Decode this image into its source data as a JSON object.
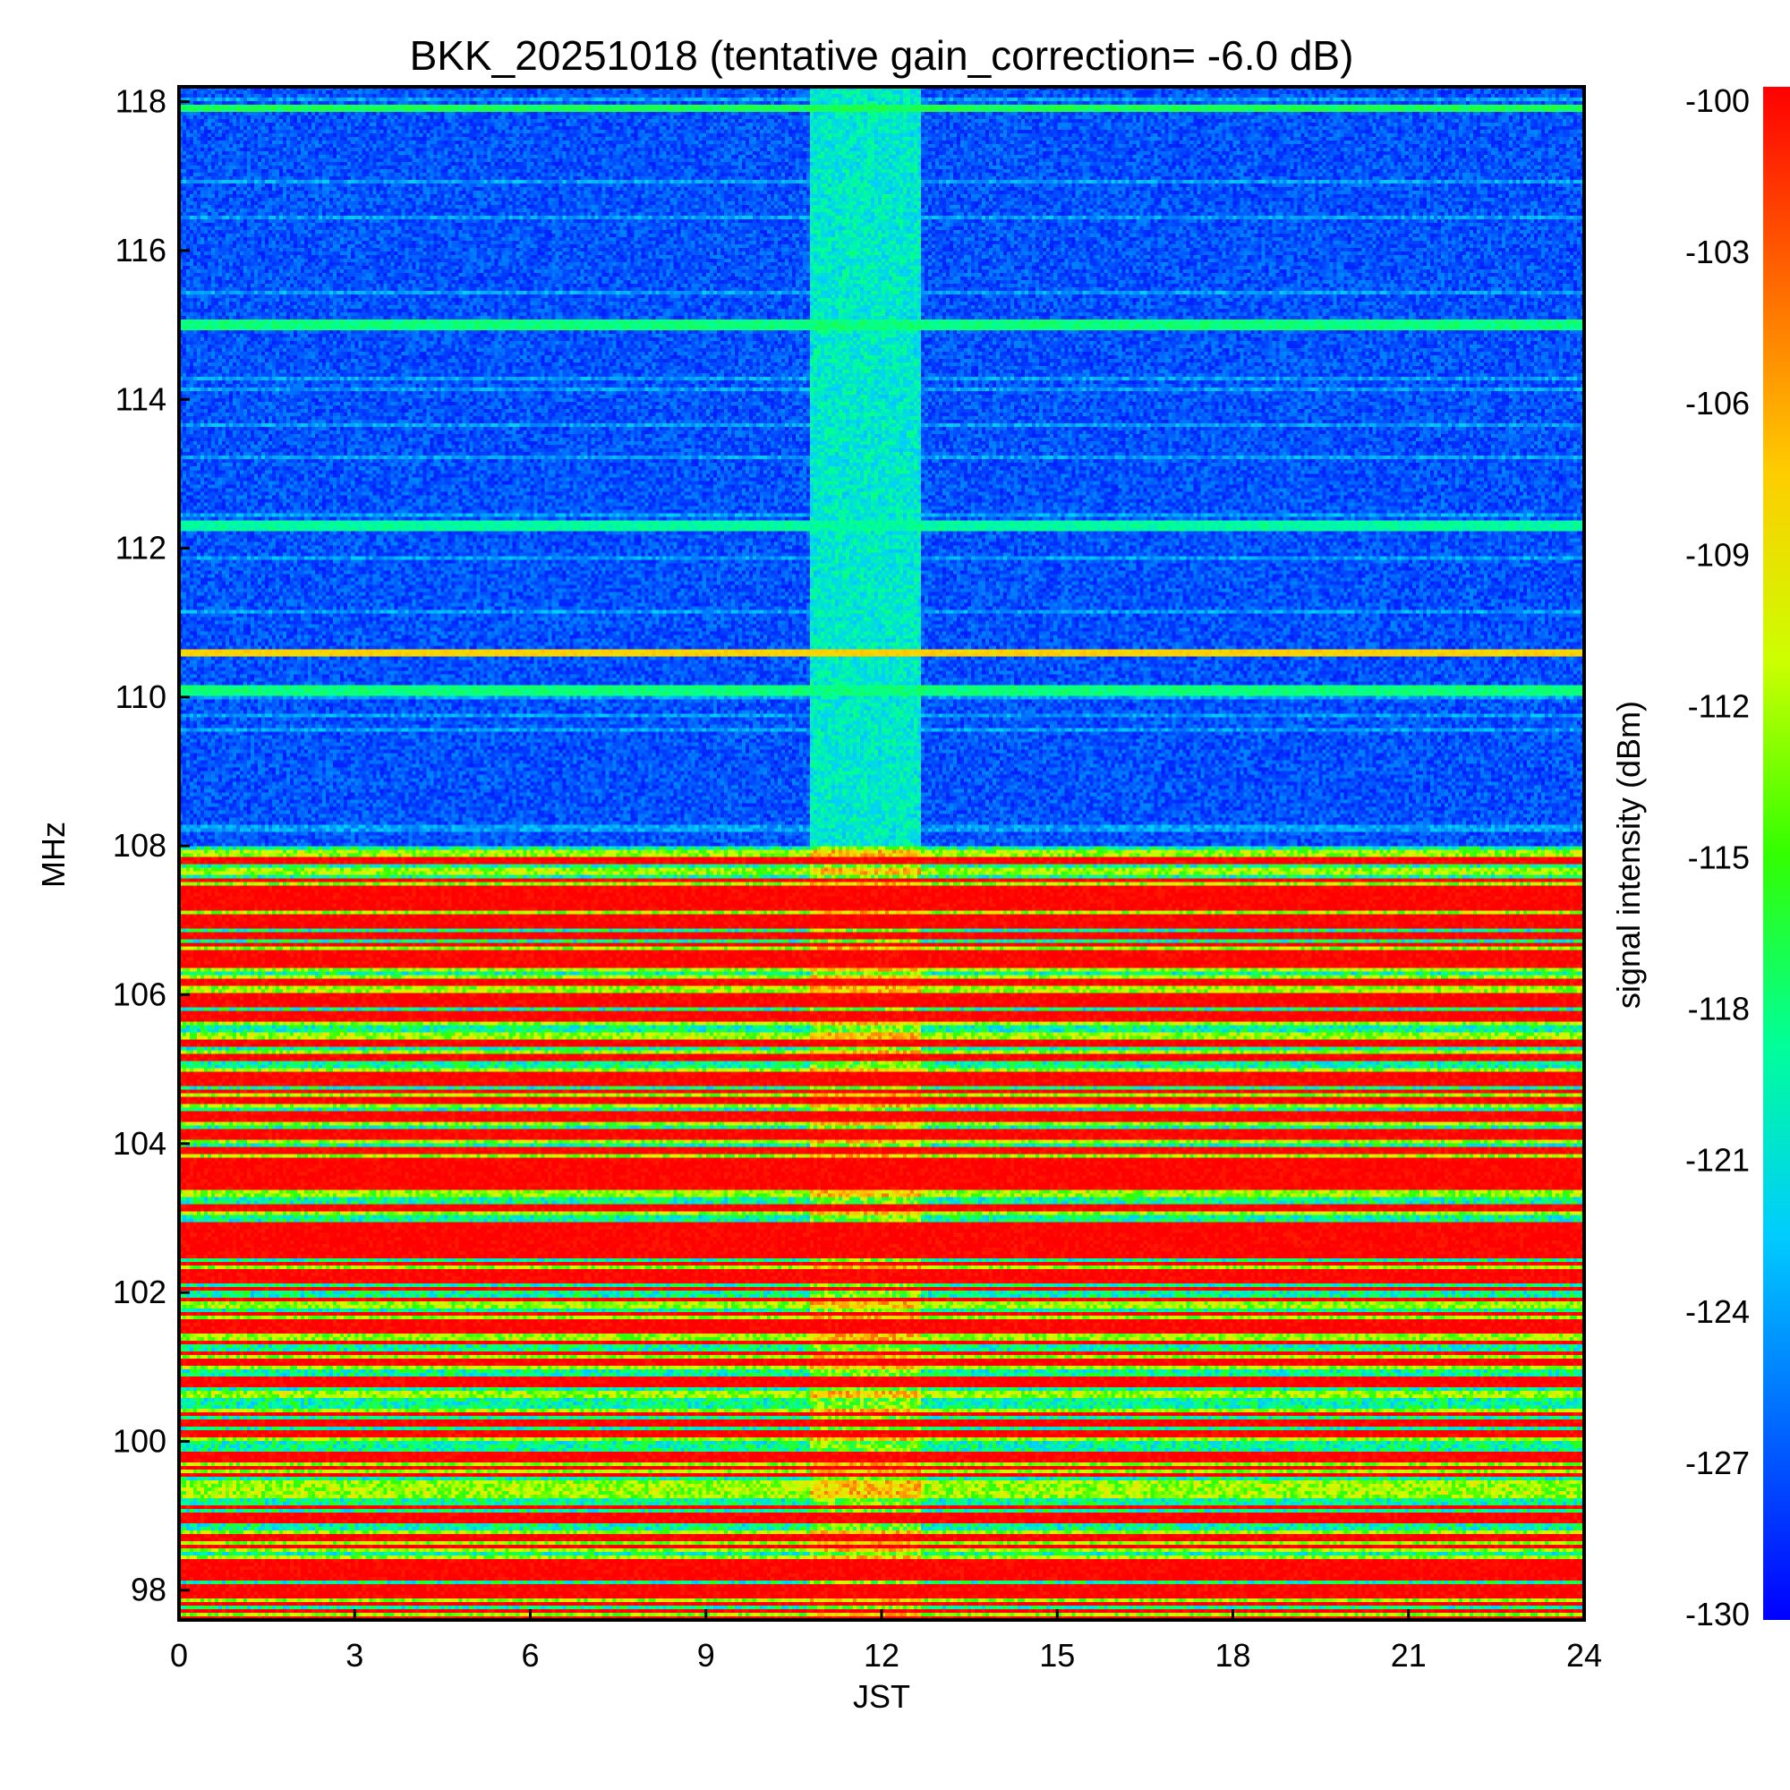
{
  "chart_data": {
    "type": "heatmap",
    "title": "BKK_20251018 (tentative gain_correction= -6.0 dB)",
    "xlabel": "JST",
    "ylabel": "MHz",
    "xlim": [
      0,
      24
    ],
    "ylim": [
      97.6,
      118.2
    ],
    "x_ticks": [
      "0",
      "3",
      "6",
      "9",
      "12",
      "15",
      "18",
      "21",
      "24"
    ],
    "y_ticks": [
      "98",
      "100",
      "102",
      "104",
      "106",
      "108",
      "110",
      "112",
      "114",
      "116",
      "118"
    ],
    "colorbar": {
      "label": "signal intensity (dBm)",
      "range": [
        -130,
        -100
      ],
      "ticks": [
        "-100",
        "-103",
        "-106",
        "-109",
        "-112",
        "-115",
        "-118",
        "-121",
        "-124",
        "-127",
        "-130"
      ],
      "colormap": [
        "#0000ff",
        "#0066ff",
        "#00ccff",
        "#00ff99",
        "#33ff00",
        "#ccff00",
        "#ffcc00",
        "#ff6600",
        "#ff0000"
      ]
    },
    "notable_features": {
      "fm_band_mhz": [
        97.6,
        108.0
      ],
      "fm_band_typical_dbm": -101,
      "air_band_mhz": [
        108.0,
        118.2
      ],
      "air_band_typical_dbm": -129,
      "elevated_noise_window_jst": [
        10.8,
        12.7
      ],
      "elevated_noise_dbm": -118,
      "strong_lines_mhz": [
        115.0,
        112.3,
        110.1,
        110.6,
        117.9
      ],
      "strong_lines_dbm": [
        -117,
        -118,
        -117,
        -107,
        -116
      ]
    }
  }
}
